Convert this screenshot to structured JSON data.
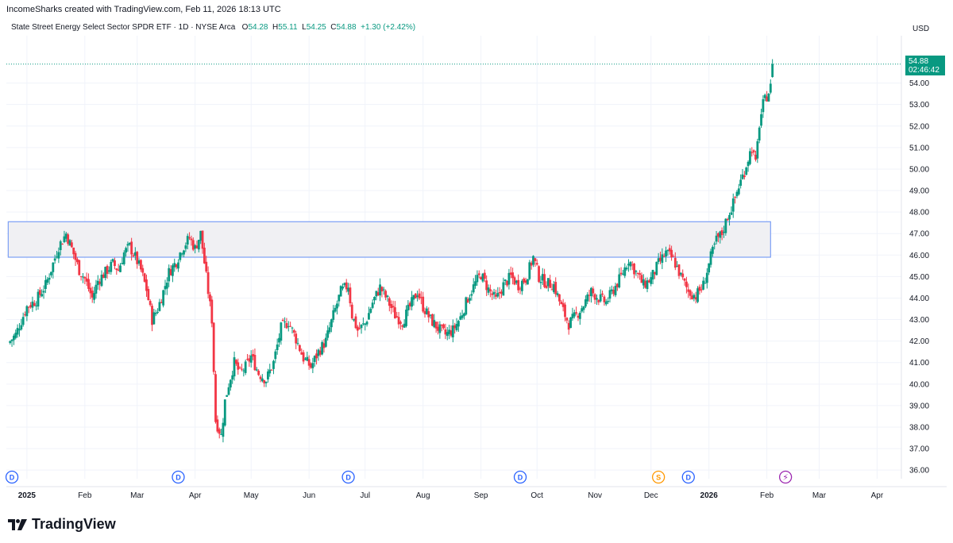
{
  "header": {
    "credit": "IncomeSharks created with TradingView.com, Feb 11, 2026 18:13 UTC",
    "symbol": "State Street Energy Select Sector SPDR ETF · 1D · NYSE Arca",
    "o_label": "O",
    "o_value": "54.28",
    "h_label": "H",
    "h_value": "55.11",
    "l_label": "L",
    "l_value": "54.25",
    "c_label": "C",
    "c_value": "54.88",
    "change": "+1.30 (+2.42%)",
    "currency": "USD"
  },
  "price_tag": {
    "price": "54.88",
    "countdown": "02:46:42"
  },
  "brand": {
    "name": "TradingView"
  },
  "colors": {
    "up": "#089981",
    "down": "#F23645",
    "box_fill": "#F0F0F3",
    "box_border": "#7C9FF5",
    "grid": "#F0F3FA"
  },
  "chart_data": {
    "type": "candlestick",
    "title": "State Street Energy Select Sector SPDR ETF · 1D · NYSE Arca",
    "ylabel": "USD",
    "ylim": [
      35.6,
      56.2
    ],
    "yticks": [
      "36.00",
      "37.00",
      "38.00",
      "39.00",
      "40.00",
      "41.00",
      "42.00",
      "43.00",
      "44.00",
      "45.00",
      "46.00",
      "47.00",
      "48.00",
      "49.00",
      "50.00",
      "51.00",
      "52.00",
      "53.00",
      "54.00"
    ],
    "xticks": [
      {
        "label": "2025",
        "day": 0,
        "bold": true
      },
      {
        "label": "Feb",
        "day": 31
      },
      {
        "label": "Mar",
        "day": 59
      },
      {
        "label": "Apr",
        "day": 90
      },
      {
        "label": "May",
        "day": 120
      },
      {
        "label": "Jun",
        "day": 151
      },
      {
        "label": "Jul",
        "day": 181
      },
      {
        "label": "Aug",
        "day": 212
      },
      {
        "label": "Sep",
        "day": 243
      },
      {
        "label": "Oct",
        "day": 273
      },
      {
        "label": "Nov",
        "day": 304
      },
      {
        "label": "Dec",
        "day": 334
      },
      {
        "label": "2026",
        "day": 365,
        "bold": true
      },
      {
        "label": "Feb",
        "day": 396
      },
      {
        "label": "Mar",
        "day": 424
      },
      {
        "label": "Apr",
        "day": 455
      }
    ],
    "resistance_zone": {
      "from_day": -10,
      "to_day": 398,
      "low": 45.9,
      "high": 47.55
    },
    "last_price": 54.88,
    "events": [
      {
        "type": "D",
        "day": -8
      },
      {
        "type": "D",
        "day": 81
      },
      {
        "type": "D",
        "day": 172
      },
      {
        "type": "D",
        "day": 264
      },
      {
        "type": "S",
        "day": 338
      },
      {
        "type": "D",
        "day": 354
      },
      {
        "type": "E",
        "day": 406
      }
    ],
    "closes": [
      {
        "day": -10,
        "close": 41.9
      },
      {
        "day": -6,
        "close": 42.3
      },
      {
        "day": 0,
        "close": 43.6
      },
      {
        "day": 5,
        "close": 43.9
      },
      {
        "day": 10,
        "close": 44.6
      },
      {
        "day": 14,
        "close": 45.6
      },
      {
        "day": 17,
        "close": 46.4
      },
      {
        "day": 21,
        "close": 47.0
      },
      {
        "day": 24,
        "close": 46.3
      },
      {
        "day": 28,
        "close": 45.3
      },
      {
        "day": 31,
        "close": 44.9
      },
      {
        "day": 35,
        "close": 44.0
      },
      {
        "day": 38,
        "close": 44.8
      },
      {
        "day": 42,
        "close": 45.2
      },
      {
        "day": 46,
        "close": 45.6
      },
      {
        "day": 49,
        "close": 45.3
      },
      {
        "day": 52,
        "close": 46.1
      },
      {
        "day": 55,
        "close": 46.4
      },
      {
        "day": 58,
        "close": 45.9
      },
      {
        "day": 61,
        "close": 45.3
      },
      {
        "day": 64,
        "close": 44.4
      },
      {
        "day": 67,
        "close": 43.0
      },
      {
        "day": 70,
        "close": 43.5
      },
      {
        "day": 73,
        "close": 44.3
      },
      {
        "day": 76,
        "close": 45.2
      },
      {
        "day": 80,
        "close": 45.7
      },
      {
        "day": 83,
        "close": 46.3
      },
      {
        "day": 87,
        "close": 46.8
      },
      {
        "day": 90,
        "close": 46.3
      },
      {
        "day": 93,
        "close": 47.0
      },
      {
        "day": 97,
        "close": 44.3
      },
      {
        "day": 99,
        "close": 43.0
      },
      {
        "day": 101,
        "close": 38.3
      },
      {
        "day": 104,
        "close": 37.6
      },
      {
        "day": 106,
        "close": 39.2
      },
      {
        "day": 108,
        "close": 40.0
      },
      {
        "day": 111,
        "close": 41.0
      },
      {
        "day": 114,
        "close": 40.5
      },
      {
        "day": 117,
        "close": 40.8
      },
      {
        "day": 120,
        "close": 41.3
      },
      {
        "day": 124,
        "close": 40.5
      },
      {
        "day": 128,
        "close": 40.2
      },
      {
        "day": 132,
        "close": 41.0
      },
      {
        "day": 136,
        "close": 42.6
      },
      {
        "day": 140,
        "close": 42.9
      },
      {
        "day": 144,
        "close": 42.1
      },
      {
        "day": 148,
        "close": 41.2
      },
      {
        "day": 152,
        "close": 40.8
      },
      {
        "day": 156,
        "close": 41.5
      },
      {
        "day": 160,
        "close": 42.0
      },
      {
        "day": 164,
        "close": 43.2
      },
      {
        "day": 168,
        "close": 44.3
      },
      {
        "day": 172,
        "close": 44.6
      },
      {
        "day": 174,
        "close": 43.2
      },
      {
        "day": 177,
        "close": 42.5
      },
      {
        "day": 181,
        "close": 42.8
      },
      {
        "day": 185,
        "close": 43.8
      },
      {
        "day": 189,
        "close": 44.5
      },
      {
        "day": 193,
        "close": 43.9
      },
      {
        "day": 197,
        "close": 43.2
      },
      {
        "day": 201,
        "close": 42.9
      },
      {
        "day": 205,
        "close": 43.6
      },
      {
        "day": 209,
        "close": 44.3
      },
      {
        "day": 212,
        "close": 43.6
      },
      {
        "day": 216,
        "close": 43.0
      },
      {
        "day": 220,
        "close": 42.6
      },
      {
        "day": 224,
        "close": 42.3
      },
      {
        "day": 228,
        "close": 42.5
      },
      {
        "day": 232,
        "close": 43.1
      },
      {
        "day": 236,
        "close": 44.0
      },
      {
        "day": 240,
        "close": 44.7
      },
      {
        "day": 243,
        "close": 45.1
      },
      {
        "day": 247,
        "close": 44.4
      },
      {
        "day": 251,
        "close": 43.9
      },
      {
        "day": 255,
        "close": 44.6
      },
      {
        "day": 259,
        "close": 45.0
      },
      {
        "day": 263,
        "close": 44.6
      },
      {
        "day": 267,
        "close": 44.9
      },
      {
        "day": 271,
        "close": 45.9
      },
      {
        "day": 274,
        "close": 45.0
      },
      {
        "day": 278,
        "close": 44.7
      },
      {
        "day": 282,
        "close": 44.6
      },
      {
        "day": 286,
        "close": 43.6
      },
      {
        "day": 290,
        "close": 42.8
      },
      {
        "day": 294,
        "close": 43.2
      },
      {
        "day": 298,
        "close": 43.7
      },
      {
        "day": 302,
        "close": 44.3
      },
      {
        "day": 306,
        "close": 44.0
      },
      {
        "day": 310,
        "close": 43.8
      },
      {
        "day": 314,
        "close": 44.4
      },
      {
        "day": 318,
        "close": 45.0
      },
      {
        "day": 322,
        "close": 45.8
      },
      {
        "day": 326,
        "close": 45.2
      },
      {
        "day": 330,
        "close": 44.6
      },
      {
        "day": 334,
        "close": 44.9
      },
      {
        "day": 338,
        "close": 45.6
      },
      {
        "day": 342,
        "close": 46.1
      },
      {
        "day": 346,
        "close": 45.8
      },
      {
        "day": 350,
        "close": 45.0
      },
      {
        "day": 354,
        "close": 44.3
      },
      {
        "day": 358,
        "close": 44.1
      },
      {
        "day": 362,
        "close": 44.6
      },
      {
        "day": 366,
        "close": 45.9
      },
      {
        "day": 369,
        "close": 46.7
      },
      {
        "day": 372,
        "close": 47.0
      },
      {
        "day": 375,
        "close": 47.8
      },
      {
        "day": 378,
        "close": 48.4
      },
      {
        "day": 381,
        "close": 49.2
      },
      {
        "day": 384,
        "close": 49.9
      },
      {
        "day": 386,
        "close": 50.5
      },
      {
        "day": 388,
        "close": 51.0
      },
      {
        "day": 390,
        "close": 50.2
      },
      {
        "day": 392,
        "close": 52.1
      },
      {
        "day": 394,
        "close": 53.0
      },
      {
        "day": 396,
        "close": 53.4
      },
      {
        "day": 398,
        "close": 53.8
      },
      {
        "day": 401,
        "close": 54.88
      }
    ]
  }
}
